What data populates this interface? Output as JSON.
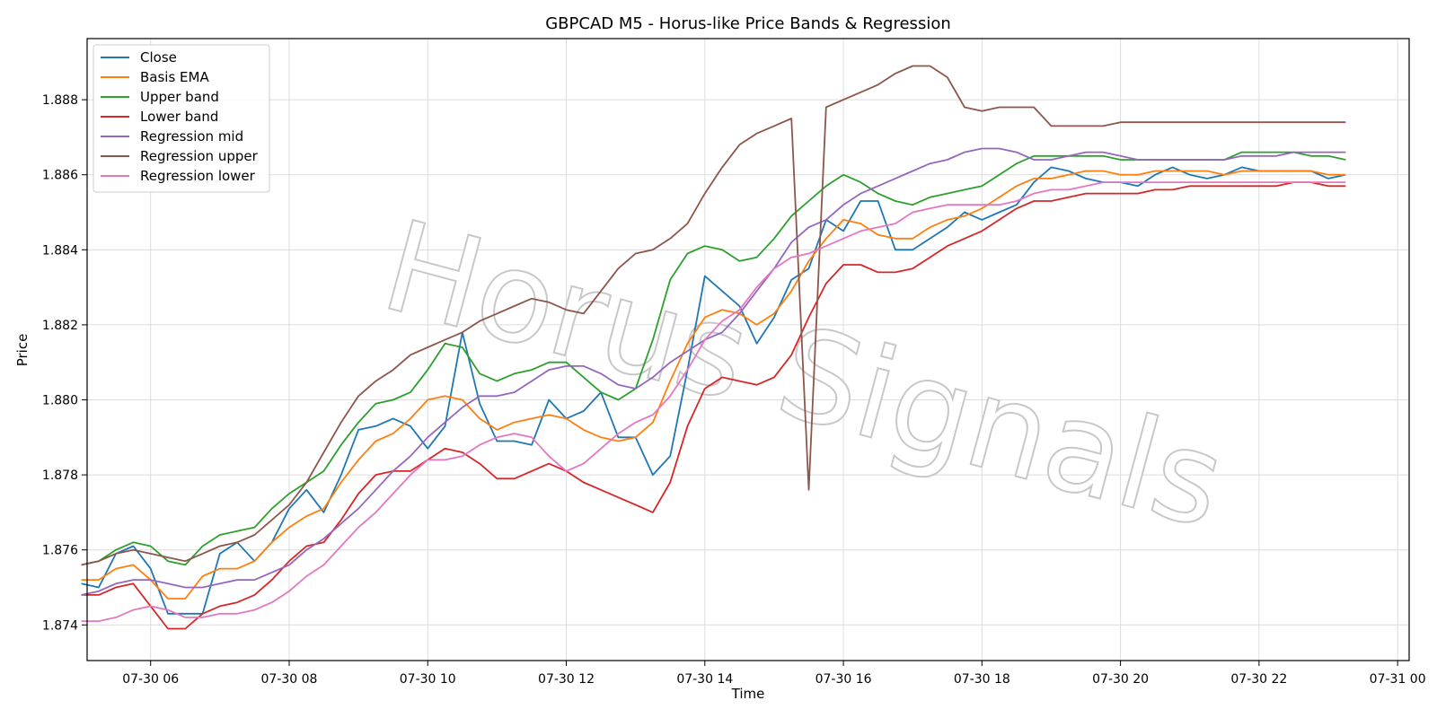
{
  "chart_data": {
    "type": "line",
    "title": "GBPCAD M5 - Horus-like Price Bands & Regression",
    "xlabel": "Time",
    "ylabel": "Price",
    "watermark": "Horus Signals",
    "grid": true,
    "legend_position": "top-left",
    "xlim": [
      "07-30 05:05",
      "07-31 00:10"
    ],
    "ylim": [
      1.87305,
      1.88963
    ],
    "x_ticks": [
      "07-30 06",
      "07-30 08",
      "07-30 10",
      "07-30 12",
      "07-30 14",
      "07-30 16",
      "07-30 18",
      "07-30 20",
      "07-30 22",
      "07-31 00"
    ],
    "y_ticks": [
      "1.874",
      "1.876",
      "1.878",
      "1.880",
      "1.882",
      "1.884",
      "1.886",
      "1.888"
    ],
    "x_sample_interval": "15min",
    "x": [
      "07-30 05:00",
      "07-30 05:15",
      "07-30 05:30",
      "07-30 05:45",
      "07-30 06:00",
      "07-30 06:15",
      "07-30 06:30",
      "07-30 06:45",
      "07-30 07:00",
      "07-30 07:15",
      "07-30 07:30",
      "07-30 07:45",
      "07-30 08:00",
      "07-30 08:15",
      "07-30 08:30",
      "07-30 08:45",
      "07-30 09:00",
      "07-30 09:15",
      "07-30 09:30",
      "07-30 09:45",
      "07-30 10:00",
      "07-30 10:15",
      "07-30 10:30",
      "07-30 10:45",
      "07-30 11:00",
      "07-30 11:15",
      "07-30 11:30",
      "07-30 11:45",
      "07-30 12:00",
      "07-30 12:15",
      "07-30 12:30",
      "07-30 12:45",
      "07-30 13:00",
      "07-30 13:15",
      "07-30 13:30",
      "07-30 13:45",
      "07-30 14:00",
      "07-30 14:15",
      "07-30 14:30",
      "07-30 14:45",
      "07-30 15:00",
      "07-30 15:15",
      "07-30 15:30",
      "07-30 15:45",
      "07-30 16:00",
      "07-30 16:15",
      "07-30 16:30",
      "07-30 16:45",
      "07-30 17:00",
      "07-30 17:15",
      "07-30 17:30",
      "07-30 17:45",
      "07-30 18:00",
      "07-30 18:15",
      "07-30 18:30",
      "07-30 18:45",
      "07-30 19:00",
      "07-30 19:15",
      "07-30 19:30",
      "07-30 19:45",
      "07-30 20:00",
      "07-30 20:15",
      "07-30 20:30",
      "07-30 20:45",
      "07-30 21:00",
      "07-30 21:15",
      "07-30 21:30",
      "07-30 21:45",
      "07-30 22:00",
      "07-30 22:15",
      "07-30 22:30",
      "07-30 22:45",
      "07-30 23:00",
      "07-30 23:15"
    ],
    "series": [
      {
        "name": "Close",
        "color": "#1f77b4",
        "values": [
          1.8751,
          1.875,
          1.8759,
          1.8761,
          1.8755,
          1.8743,
          1.8743,
          1.8743,
          1.8759,
          1.8762,
          1.8757,
          1.8762,
          1.8771,
          1.8776,
          1.877,
          1.878,
          1.8792,
          1.8793,
          1.8795,
          1.8793,
          1.8787,
          1.8793,
          1.8818,
          1.8799,
          1.8789,
          1.8789,
          1.8788,
          1.88,
          1.8795,
          1.8797,
          1.8802,
          1.879,
          1.879,
          1.878,
          1.8785,
          1.8808,
          1.8833,
          1.8829,
          1.8825,
          1.8815,
          1.8822,
          1.8832,
          1.8835,
          1.8848,
          1.8845,
          1.8853,
          1.8853,
          1.884,
          1.884,
          1.8843,
          1.8846,
          1.885,
          1.8848,
          1.885,
          1.8852,
          1.8858,
          1.8862,
          1.8861,
          1.8859,
          1.8858,
          1.8858,
          1.8857,
          1.886,
          1.8862,
          1.886,
          1.8859,
          1.886,
          1.8862,
          1.8861,
          1.8861,
          1.8861,
          1.8861,
          1.8859,
          1.886
        ]
      },
      {
        "name": "Basis EMA",
        "color": "#ff7f0e",
        "values": [
          1.8752,
          1.8752,
          1.8755,
          1.8756,
          1.8752,
          1.8747,
          1.8747,
          1.8753,
          1.8755,
          1.8755,
          1.8757,
          1.8762,
          1.8766,
          1.8769,
          1.8771,
          1.8778,
          1.8784,
          1.8789,
          1.8791,
          1.8795,
          1.88,
          1.8801,
          1.88,
          1.8795,
          1.8792,
          1.8794,
          1.8795,
          1.8796,
          1.8795,
          1.8792,
          1.879,
          1.8789,
          1.879,
          1.8794,
          1.8805,
          1.8815,
          1.8822,
          1.8824,
          1.8823,
          1.882,
          1.8823,
          1.8829,
          1.8837,
          1.8843,
          1.8848,
          1.8847,
          1.8844,
          1.8843,
          1.8843,
          1.8846,
          1.8848,
          1.8849,
          1.8851,
          1.8854,
          1.8857,
          1.8859,
          1.8859,
          1.886,
          1.8861,
          1.8861,
          1.886,
          1.886,
          1.8861,
          1.8861,
          1.8861,
          1.8861,
          1.886,
          1.8861,
          1.8861,
          1.8861,
          1.8861,
          1.8861,
          1.886,
          1.886
        ]
      },
      {
        "name": "Upper band",
        "color": "#2ca02c",
        "values": [
          1.8756,
          1.8757,
          1.876,
          1.8762,
          1.8761,
          1.8757,
          1.8756,
          1.8761,
          1.8764,
          1.8765,
          1.8766,
          1.8771,
          1.8775,
          1.8778,
          1.8781,
          1.8788,
          1.8794,
          1.8799,
          1.88,
          1.8802,
          1.8808,
          1.8815,
          1.8814,
          1.8807,
          1.8805,
          1.8807,
          1.8808,
          1.881,
          1.881,
          1.8806,
          1.8802,
          1.88,
          1.8803,
          1.8816,
          1.8832,
          1.8839,
          1.8841,
          1.884,
          1.8837,
          1.8838,
          1.8843,
          1.8849,
          1.8853,
          1.8857,
          1.886,
          1.8858,
          1.8855,
          1.8853,
          1.8852,
          1.8854,
          1.8855,
          1.8856,
          1.8857,
          1.886,
          1.8863,
          1.8865,
          1.8865,
          1.8865,
          1.8865,
          1.8865,
          1.8864,
          1.8864,
          1.8864,
          1.8864,
          1.8864,
          1.8864,
          1.8864,
          1.8866,
          1.8866,
          1.8866,
          1.8866,
          1.8865,
          1.8865,
          1.8864
        ]
      },
      {
        "name": "Lower band",
        "color": "#d62728",
        "values": [
          1.8748,
          1.8748,
          1.875,
          1.8751,
          1.8745,
          1.8739,
          1.8739,
          1.8743,
          1.8745,
          1.8746,
          1.8748,
          1.8752,
          1.8757,
          1.8761,
          1.8762,
          1.8768,
          1.8775,
          1.878,
          1.8781,
          1.8781,
          1.8784,
          1.8787,
          1.8786,
          1.8783,
          1.8779,
          1.8779,
          1.8781,
          1.8783,
          1.8781,
          1.8778,
          1.8776,
          1.8774,
          1.8772,
          1.877,
          1.8778,
          1.8793,
          1.8803,
          1.8806,
          1.8805,
          1.8804,
          1.8806,
          1.8812,
          1.8822,
          1.8831,
          1.8836,
          1.8836,
          1.8834,
          1.8834,
          1.8835,
          1.8838,
          1.8841,
          1.8843,
          1.8845,
          1.8848,
          1.8851,
          1.8853,
          1.8853,
          1.8854,
          1.8855,
          1.8855,
          1.8855,
          1.8855,
          1.8856,
          1.8856,
          1.8857,
          1.8857,
          1.8857,
          1.8857,
          1.8857,
          1.8857,
          1.8858,
          1.8858,
          1.8857,
          1.8857
        ]
      },
      {
        "name": "Regression mid",
        "color": "#9467bd",
        "values": [
          1.8748,
          1.8749,
          1.8751,
          1.8752,
          1.8752,
          1.8751,
          1.875,
          1.875,
          1.8751,
          1.8752,
          1.8752,
          1.8754,
          1.8756,
          1.876,
          1.8763,
          1.8767,
          1.8771,
          1.8776,
          1.8781,
          1.8785,
          1.879,
          1.8794,
          1.8798,
          1.8801,
          1.8801,
          1.8802,
          1.8805,
          1.8808,
          1.8809,
          1.8809,
          1.8807,
          1.8804,
          1.8803,
          1.8806,
          1.881,
          1.8813,
          1.8816,
          1.8818,
          1.8823,
          1.8829,
          1.8835,
          1.8842,
          1.8846,
          1.8848,
          1.8852,
          1.8855,
          1.8857,
          1.8859,
          1.8861,
          1.8863,
          1.8864,
          1.8866,
          1.8867,
          1.8867,
          1.8866,
          1.8864,
          1.8864,
          1.8865,
          1.8866,
          1.8866,
          1.8865,
          1.8864,
          1.8864,
          1.8864,
          1.8864,
          1.8864,
          1.8864,
          1.8865,
          1.8865,
          1.8865,
          1.8866,
          1.8866,
          1.8866,
          1.8866
        ]
      },
      {
        "name": "Regression upper",
        "color": "#8c564b",
        "values": [
          1.8756,
          1.8757,
          1.8759,
          1.876,
          1.8759,
          1.8758,
          1.8757,
          1.8759,
          1.8761,
          1.8762,
          1.8764,
          1.8768,
          1.8772,
          1.8778,
          1.8786,
          1.8794,
          1.8801,
          1.8805,
          1.8808,
          1.8812,
          1.8814,
          1.8816,
          1.8818,
          1.8821,
          1.8823,
          1.8825,
          1.8827,
          1.8826,
          1.8824,
          1.8823,
          1.8829,
          1.8835,
          1.8839,
          1.884,
          1.8843,
          1.8847,
          1.8855,
          1.8862,
          1.8868,
          1.8871,
          1.8873,
          1.8875,
          1.8776,
          1.8878,
          1.888,
          1.8882,
          1.8884,
          1.8887,
          1.8889,
          1.8889,
          1.8886,
          1.8878,
          1.8877,
          1.8878,
          1.8878,
          1.8878,
          1.8873,
          1.8873,
          1.8873,
          1.8873,
          1.8874,
          1.8874,
          1.8874,
          1.8874,
          1.8874,
          1.8874,
          1.8874,
          1.8874,
          1.8874,
          1.8874,
          1.8874,
          1.8874,
          1.8874,
          1.8874
        ]
      },
      {
        "name": "Regression lower",
        "color": "#e377c2",
        "values": [
          1.8741,
          1.8741,
          1.8742,
          1.8744,
          1.8745,
          1.8744,
          1.8742,
          1.8742,
          1.8743,
          1.8743,
          1.8744,
          1.8746,
          1.8749,
          1.8753,
          1.8756,
          1.8761,
          1.8766,
          1.877,
          1.8775,
          1.878,
          1.8784,
          1.8784,
          1.8785,
          1.8788,
          1.879,
          1.8791,
          1.879,
          1.8785,
          1.8781,
          1.8783,
          1.8787,
          1.8791,
          1.8794,
          1.8796,
          1.8801,
          1.8808,
          1.8816,
          1.8821,
          1.8824,
          1.883,
          1.8835,
          1.8838,
          1.8839,
          1.8841,
          1.8843,
          1.8845,
          1.8846,
          1.8847,
          1.885,
          1.8851,
          1.8852,
          1.8852,
          1.8852,
          1.8852,
          1.8853,
          1.8855,
          1.8856,
          1.8856,
          1.8857,
          1.8858,
          1.8858,
          1.8858,
          1.8858,
          1.8858,
          1.8858,
          1.8858,
          1.8858,
          1.8858,
          1.8858,
          1.8858,
          1.8858,
          1.8858,
          1.8858,
          1.8858
        ]
      }
    ]
  }
}
